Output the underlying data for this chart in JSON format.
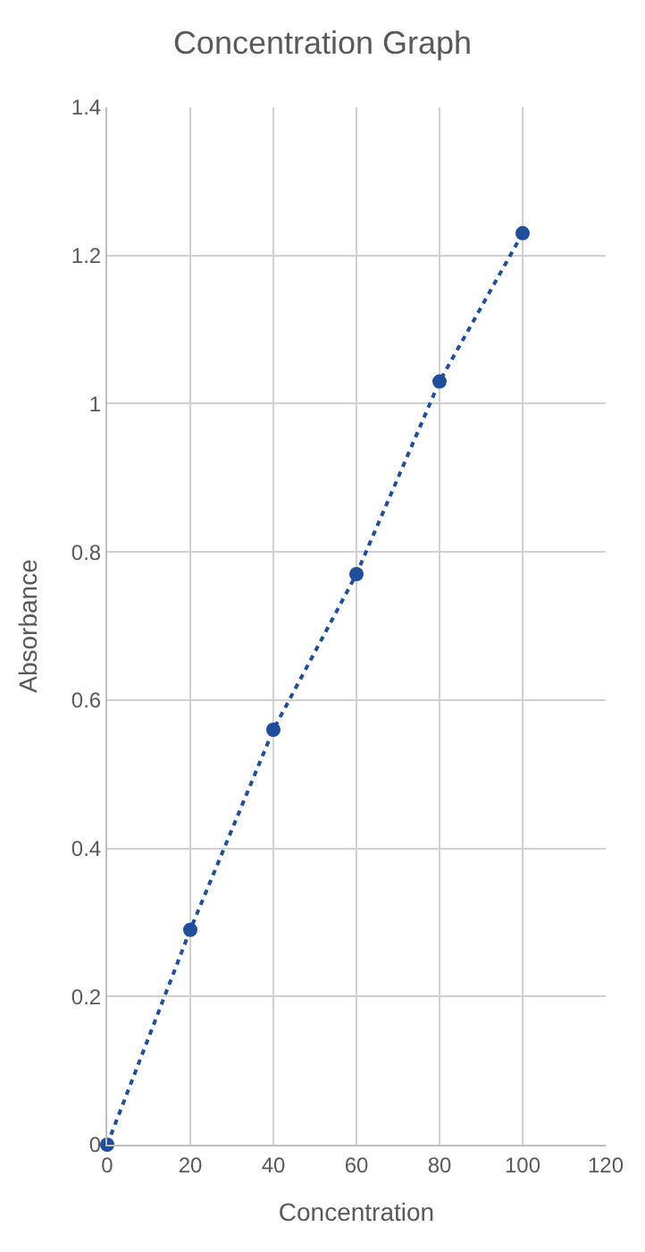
{
  "chart_data": {
    "type": "line",
    "title": "Concentration Graph",
    "xlabel": "Concentration",
    "ylabel": "Absorbance",
    "x": [
      0,
      20,
      40,
      60,
      80,
      100
    ],
    "series": [
      {
        "color": "#1f4e9c",
        "values": [
          0,
          0.29,
          0.56,
          0.77,
          1.03,
          1.23
        ]
      }
    ],
    "xlim": [
      0,
      120
    ],
    "xticks": [
      0,
      20,
      40,
      60,
      80,
      100,
      120
    ],
    "ylim": [
      0,
      1.4
    ],
    "yticks": [
      0,
      0.2,
      0.4,
      0.6,
      0.8,
      1,
      1.2,
      1.4
    ],
    "grid": true,
    "marker": "circle",
    "line_style": "dotted"
  }
}
